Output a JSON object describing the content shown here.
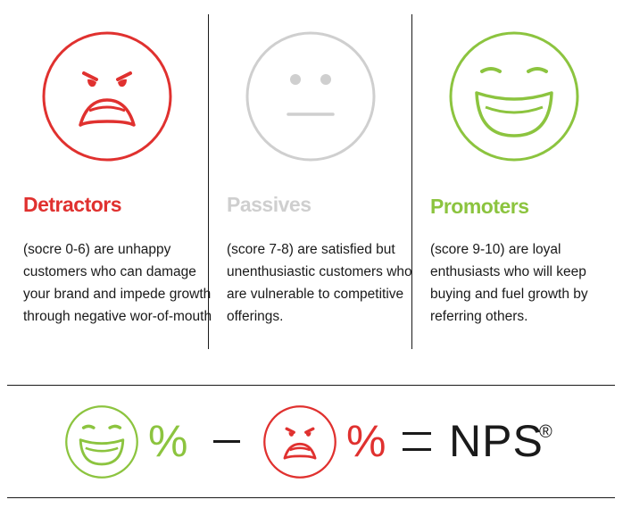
{
  "colors": {
    "red": "#e0312f",
    "gray": "#cfcfcf",
    "green": "#8cc43f",
    "text": "#1a1a1a"
  },
  "categories": [
    {
      "id": "detractors",
      "icon": "angry-face-icon",
      "title": "Detractors",
      "description": "(socre 0-6) are unhappy customers who can damage your brand and impede growth through negative wor-of-mouth"
    },
    {
      "id": "passives",
      "icon": "neutral-face-icon",
      "title": "Passives",
      "description": "(score 7-8) are satisfied but unenthusiastic customers who are vulnerable to competitive offerings."
    },
    {
      "id": "promoters",
      "icon": "laughing-face-icon",
      "title": "Promoters",
      "description": "(score 9-10) are loyal enthusiasts who will keep buying and fuel growth by referring others."
    }
  ],
  "formula": {
    "promoter_icon": "laughing-face-icon",
    "detractor_icon": "angry-face-icon",
    "percent_symbol": "%",
    "result_label": "NPS",
    "registered_mark": "®"
  }
}
